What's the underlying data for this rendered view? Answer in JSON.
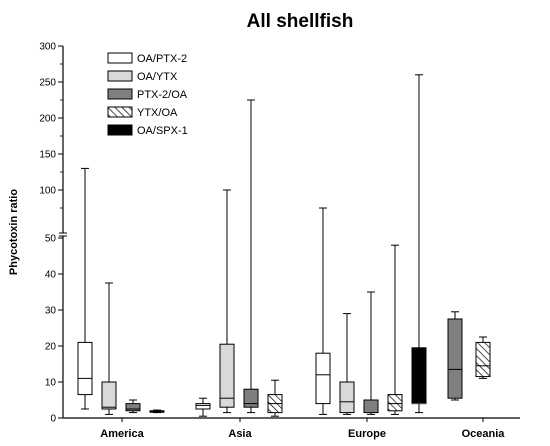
{
  "chart_data": {
    "type": "boxplot",
    "title": "All shellfish",
    "ylabel": "Phycotoxin ratio",
    "xlabel": "",
    "y_axis": "broken",
    "y_lower_range": [
      0,
      50
    ],
    "y_upper_range": [
      50,
      300
    ],
    "y_lower_ticks": [
      "0",
      "10",
      "20",
      "30",
      "40",
      "50"
    ],
    "y_upper_ticks": [
      "100",
      "150",
      "200",
      "250",
      "300"
    ],
    "categories": [
      "America",
      "Asia",
      "Europe",
      "Oceania"
    ],
    "legend_position": "top-left",
    "series": [
      {
        "name": "OA/PTX-2",
        "style": "open",
        "color": "#ffffff",
        "boxes": [
          {
            "category": "America",
            "min": 2.5,
            "q1": 6.5,
            "median": 11,
            "q3": 21,
            "max": 130
          },
          {
            "category": "Asia",
            "min": 0.5,
            "q1": 2.5,
            "median": 3.5,
            "q3": 4.0,
            "max": 5.5
          },
          {
            "category": "Europe",
            "min": 1,
            "q1": 4,
            "median": 12,
            "q3": 18,
            "max": 75
          }
        ]
      },
      {
        "name": "OA/YTX",
        "style": "light-gray",
        "color": "#d9d9d9",
        "boxes": [
          {
            "category": "America",
            "min": 1,
            "q1": 2.5,
            "median": 3,
            "q3": 10,
            "max": 37.5
          },
          {
            "category": "Asia",
            "min": 1.5,
            "q1": 3,
            "median": 5.5,
            "q3": 20.5,
            "max": 100
          },
          {
            "category": "Europe",
            "min": 1,
            "q1": 1.5,
            "median": 4.5,
            "q3": 10,
            "max": 29
          }
        ]
      },
      {
        "name": "PTX-2/OA",
        "style": "dark-gray",
        "color": "#7f7f7f",
        "boxes": [
          {
            "category": "America",
            "min": 1.5,
            "q1": 2,
            "median": 2.5,
            "q3": 4,
            "max": 5
          },
          {
            "category": "Asia",
            "min": 1.5,
            "q1": 3,
            "median": 4,
            "q3": 8,
            "max": 225
          },
          {
            "category": "Europe",
            "min": 1,
            "q1": 1.5,
            "median": 5,
            "q3": 5,
            "max": 35
          },
          {
            "category": "Oceania",
            "min": 5,
            "q1": 5.5,
            "median": 13.5,
            "q3": 27.5,
            "max": 29.5
          }
        ]
      },
      {
        "name": "YTX/OA",
        "style": "hatched",
        "color": "#ffffff",
        "boxes": [
          {
            "category": "America",
            "min": 1.5,
            "q1": 1.6,
            "median": 1.8,
            "q3": 2.0,
            "max": 2.2
          },
          {
            "category": "Asia",
            "min": 0.5,
            "q1": 1.5,
            "median": 4,
            "q3": 6.5,
            "max": 10.5
          },
          {
            "category": "Europe",
            "min": 1,
            "q1": 2,
            "median": 4,
            "q3": 6.5,
            "max": 48
          },
          {
            "category": "Oceania",
            "min": 11,
            "q1": 11.5,
            "median": 14.5,
            "q3": 21,
            "max": 22.5
          }
        ]
      },
      {
        "name": "OA/SPX-1",
        "style": "black",
        "color": "#000000",
        "boxes": [
          {
            "category": "Europe",
            "min": 1.5,
            "q1": 4,
            "median": 4,
            "q3": 19.5,
            "max": 260
          }
        ]
      }
    ]
  }
}
